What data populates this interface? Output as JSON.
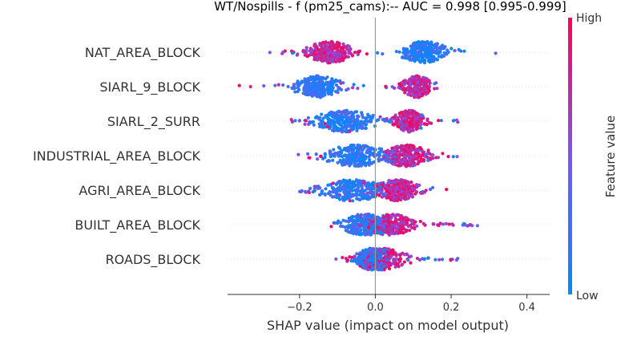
{
  "chart_data": {
    "type": "scatter",
    "subtype": "shap-beeswarm",
    "title": "WT/Nospills - f (pm25_cams):--  AUC = 0.998 [0.995-0.999]",
    "xlabel": "SHAP value (impact on model output)",
    "xlim": [
      -0.39,
      0.46
    ],
    "xticks": [
      -0.2,
      0.0,
      0.2,
      0.4
    ],
    "xtick_labels": [
      "−0.2",
      "0.0",
      "0.2",
      "0.4"
    ],
    "colorbar": {
      "label": "Feature value",
      "high": "High",
      "low": "Low",
      "high_color": "#ff0052",
      "low_color": "#008bfb"
    },
    "grid": false,
    "features": [
      {
        "name": "NAT_AREA_BLOCK",
        "range": [
          -0.29,
          0.41
        ],
        "low": {
          "center": 0.13,
          "spread": 0.03
        },
        "high": {
          "center": -0.12,
          "spread": 0.03
        }
      },
      {
        "name": "SIARL_9_BLOCK",
        "range": [
          -0.36,
          0.18
        ],
        "low": {
          "center": -0.15,
          "spread": 0.03
        },
        "high": {
          "center": 0.11,
          "spread": 0.02
        }
      },
      {
        "name": "SIARL_2_SURR",
        "range": [
          -0.23,
          0.22
        ],
        "low": {
          "center": -0.08,
          "spread": 0.04
        },
        "high": {
          "center": 0.09,
          "spread": 0.02
        }
      },
      {
        "name": "INDUSTRIAL_AREA_BLOCK",
        "range": [
          -0.21,
          0.22
        ],
        "low": {
          "center": -0.05,
          "spread": 0.04
        },
        "high": {
          "center": 0.08,
          "spread": 0.03
        }
      },
      {
        "name": "AGRI_AREA_BLOCK",
        "range": [
          -0.2,
          0.21
        ],
        "low": {
          "center": -0.06,
          "spread": 0.04
        },
        "high": {
          "center": 0.06,
          "spread": 0.03
        }
      },
      {
        "name": "BUILT_AREA_BLOCK",
        "range": [
          -0.12,
          0.27
        ],
        "low": {
          "center": -0.03,
          "spread": 0.03
        },
        "high": {
          "center": 0.04,
          "spread": 0.03
        }
      },
      {
        "name": "ROADS_BLOCK",
        "range": [
          -0.11,
          0.22
        ],
        "low": {
          "center": -0.01,
          "spread": 0.02
        },
        "high": {
          "center": 0.02,
          "spread": 0.03
        }
      }
    ]
  }
}
